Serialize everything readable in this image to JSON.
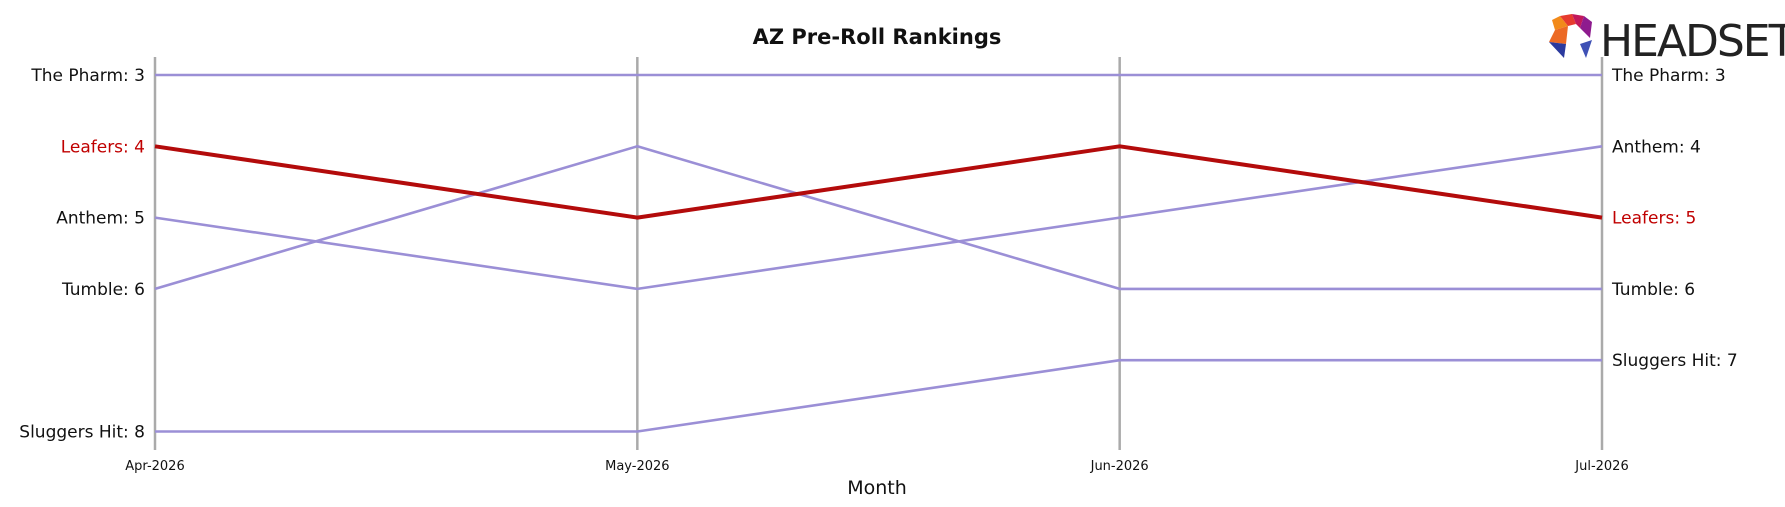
{
  "chart_data": {
    "type": "line",
    "title": "AZ Pre-Roll Rankings",
    "xlabel": "Month",
    "ylabel": "",
    "categories": [
      "Apr-2026",
      "May-2026",
      "Jun-2026",
      "Jul-2026"
    ],
    "y_inverted": true,
    "ylim": [
      3,
      8
    ],
    "series": [
      {
        "name": "The Pharm",
        "values": [
          3,
          3,
          3,
          3
        ],
        "color": "#9b8fd6",
        "highlight": false
      },
      {
        "name": "Leafers",
        "values": [
          4,
          5,
          4,
          5
        ],
        "color": "#b30b0b",
        "highlight": true
      },
      {
        "name": "Anthem",
        "values": [
          5,
          6,
          5,
          4
        ],
        "color": "#9b8fd6",
        "highlight": false
      },
      {
        "name": "Tumble",
        "values": [
          6,
          4,
          6,
          6
        ],
        "color": "#9b8fd6",
        "highlight": false
      },
      {
        "name": "Sluggers Hit",
        "values": [
          8,
          8,
          7,
          7
        ],
        "color": "#9b8fd6",
        "highlight": false
      }
    ],
    "start_labels": [
      "The Pharm: 3",
      "Leafers: 4",
      "Anthem: 5",
      "Tumble: 6",
      "Sluggers Hit: 8"
    ],
    "end_labels": [
      "The Pharm: 3",
      "Anthem: 4",
      "Leafers: 5",
      "Tumble: 6",
      "Sluggers Hit: 7"
    ],
    "grid": "vertical"
  },
  "logo": {
    "text": "HEADSET",
    "colors": [
      "#e63b2e",
      "#f28a1b",
      "#c2185b",
      "#8e1b8e",
      "#2b3a9e",
      "#3f51b5"
    ]
  }
}
